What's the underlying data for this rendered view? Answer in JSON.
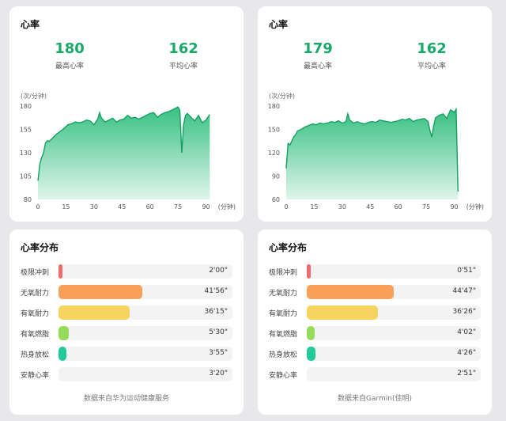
{
  "panels": [
    {
      "heart_rate": {
        "title": "心率",
        "stats": [
          {
            "value": "180",
            "label": "最高心率"
          },
          {
            "value": "162",
            "label": "平均心率"
          }
        ],
        "unit": "(次/分钟)",
        "x_unit": "(分钟)",
        "chart_data": {
          "type": "area",
          "x_ticks": [
            0,
            15,
            30,
            45,
            60,
            75,
            90
          ],
          "y_ticks": [
            180,
            155,
            130,
            105,
            80
          ],
          "xlim": [
            0,
            94
          ],
          "ylim": [
            80,
            180
          ],
          "x": [
            0,
            1,
            2,
            3,
            4,
            5,
            6,
            8,
            10,
            12,
            14,
            16,
            18,
            20,
            22,
            24,
            26,
            28,
            30,
            32,
            33,
            34,
            36,
            38,
            40,
            42,
            44,
            46,
            48,
            50,
            52,
            54,
            56,
            58,
            60,
            62,
            64,
            66,
            68,
            70,
            72,
            74,
            75,
            76,
            77,
            78,
            79,
            80,
            82,
            84,
            86,
            88,
            90,
            92
          ],
          "y": [
            100,
            118,
            125,
            130,
            140,
            143,
            142,
            146,
            150,
            153,
            156,
            160,
            161,
            163,
            162,
            163,
            165,
            164,
            160,
            166,
            173,
            167,
            163,
            165,
            167,
            163,
            165,
            166,
            170,
            167,
            168,
            166,
            168,
            170,
            172,
            173,
            168,
            171,
            173,
            174,
            176,
            178,
            179,
            175,
            130,
            160,
            170,
            172,
            168,
            164,
            170,
            162,
            165,
            171
          ],
          "color": "#2dbd7b"
        }
      },
      "distribution": {
        "title": "心率分布",
        "zones": [
          {
            "label": "极限冲刺",
            "time": "2'00\"",
            "fraction": 0.02,
            "color": "#f06b6b"
          },
          {
            "label": "无氧耐力",
            "time": "41'56\"",
            "fraction": 0.48,
            "color": "#f9a05a"
          },
          {
            "label": "有氧耐力",
            "time": "36'15\"",
            "fraction": 0.41,
            "color": "#f7d460"
          },
          {
            "label": "有氧燃脂",
            "time": "5'30\"",
            "fraction": 0.06,
            "color": "#97db5a"
          },
          {
            "label": "热身放松",
            "time": "3'55\"",
            "fraction": 0.045,
            "color": "#22c99a"
          },
          {
            "label": "安静心率",
            "time": "3'20\"",
            "fraction": 0.0,
            "color": "#cccccc"
          }
        ],
        "source": "数据来自华为运动健康服务"
      }
    },
    {
      "heart_rate": {
        "title": "心率",
        "stats": [
          {
            "value": "179",
            "label": "最高心率"
          },
          {
            "value": "162",
            "label": "平均心率"
          }
        ],
        "unit": "(次/分钟)",
        "x_unit": "(分钟)",
        "chart_data": {
          "type": "area",
          "x_ticks": [
            0,
            15,
            30,
            45,
            60,
            75,
            90
          ],
          "y_ticks": [
            180,
            150,
            120,
            90,
            60
          ],
          "xlim": [
            0,
            94
          ],
          "ylim": [
            60,
            180
          ],
          "x": [
            0,
            1,
            2,
            3,
            4,
            5,
            6,
            8,
            10,
            12,
            14,
            16,
            18,
            20,
            22,
            24,
            26,
            28,
            30,
            32,
            33,
            34,
            36,
            38,
            40,
            42,
            44,
            46,
            48,
            50,
            52,
            54,
            56,
            58,
            60,
            62,
            64,
            66,
            68,
            70,
            72,
            74,
            76,
            77,
            78,
            79,
            80,
            82,
            84,
            86,
            88,
            90,
            91,
            92
          ],
          "y": [
            100,
            132,
            130,
            135,
            140,
            143,
            148,
            150,
            153,
            155,
            157,
            156,
            158,
            157,
            158,
            160,
            159,
            161,
            158,
            160,
            170,
            162,
            158,
            160,
            158,
            157,
            159,
            160,
            159,
            162,
            161,
            160,
            159,
            160,
            161,
            163,
            162,
            164,
            160,
            162,
            163,
            164,
            160,
            148,
            140,
            155,
            165,
            168,
            170,
            164,
            175,
            172,
            176,
            70
          ],
          "color": "#2dbd7b"
        }
      },
      "distribution": {
        "title": "心率分布",
        "zones": [
          {
            "label": "极限冲刺",
            "time": "0'51\"",
            "fraction": 0.01,
            "color": "#f06b6b"
          },
          {
            "label": "无氧耐力",
            "time": "44'47\"",
            "fraction": 0.5,
            "color": "#f9a05a"
          },
          {
            "label": "有氧耐力",
            "time": "36'26\"",
            "fraction": 0.41,
            "color": "#f7d460"
          },
          {
            "label": "有氧燃脂",
            "time": "4'02\"",
            "fraction": 0.045,
            "color": "#97db5a"
          },
          {
            "label": "热身放松",
            "time": "4'26\"",
            "fraction": 0.05,
            "color": "#22c99a"
          },
          {
            "label": "安静心率",
            "time": "2'51\"",
            "fraction": 0.0,
            "color": "#cccccc"
          }
        ],
        "source": "数据来自Garmin(佳明)"
      }
    }
  ]
}
